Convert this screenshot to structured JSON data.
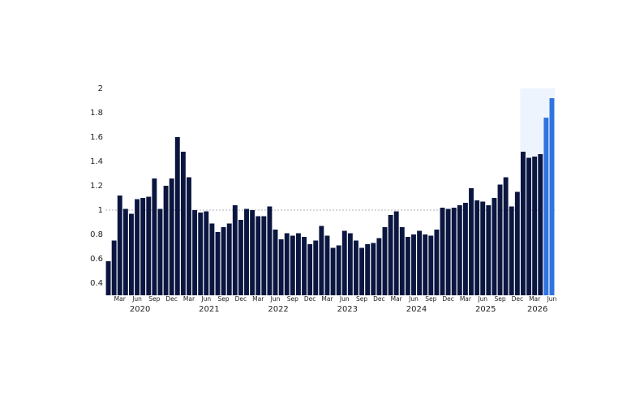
{
  "chart_data": {
    "type": "bar",
    "categories": [
      null,
      null,
      "Mar",
      null,
      null,
      "Jun",
      null,
      null,
      "Sep",
      null,
      null,
      "Dec",
      null,
      null,
      "Mar",
      null,
      null,
      "Jun",
      null,
      null,
      "Sep",
      null,
      null,
      "Dec",
      null,
      null,
      "Mar",
      null,
      null,
      "Jun",
      null,
      null,
      "Sep",
      null,
      null,
      "Dec",
      null,
      null,
      "Mar",
      null,
      null,
      "Jun",
      null,
      null,
      "Sep",
      null,
      null,
      "Dec",
      null,
      null,
      "Mar",
      null,
      null,
      "Jun",
      null,
      null,
      "Sep",
      null,
      null,
      "Dec",
      null,
      null,
      "Mar",
      null,
      null,
      "Jun",
      null,
      null,
      "Sep",
      null,
      null,
      "Dec",
      null,
      null,
      "Mar",
      null,
      null,
      "Jun"
    ],
    "years": [
      "2020",
      "2021",
      "2022",
      "2023",
      "2024",
      "2025",
      "2026"
    ],
    "values": [
      0.58,
      0.75,
      1.12,
      1.01,
      0.97,
      1.09,
      1.1,
      1.11,
      1.26,
      1.01,
      1.2,
      1.26,
      1.6,
      1.48,
      1.27,
      1.0,
      0.98,
      0.99,
      0.89,
      0.82,
      0.86,
      0.89,
      1.04,
      0.92,
      1.01,
      1.0,
      0.95,
      0.95,
      1.03,
      0.84,
      0.76,
      0.81,
      0.79,
      0.81,
      0.78,
      0.72,
      0.75,
      0.87,
      0.79,
      0.69,
      0.71,
      0.83,
      0.81,
      0.75,
      0.69,
      0.72,
      0.73,
      0.77,
      0.86,
      0.96,
      0.99,
      0.86,
      0.78,
      0.8,
      0.83,
      0.8,
      0.79,
      0.84,
      1.02,
      1.01,
      1.02,
      1.04,
      1.06,
      1.18,
      1.08,
      1.07,
      1.04,
      1.1,
      1.21,
      1.27,
      1.03,
      1.15,
      1.48,
      1.43,
      1.44,
      1.46,
      1.76,
      1.92
    ],
    "color": "#0b1640",
    "highlight_color": "#2f74e0",
    "highlight_last": 2,
    "shade_from": 72,
    "shade_color": "#eef4fd",
    "reference_line": 1.0,
    "ylim": [
      0.3,
      2.0
    ],
    "yticks": [
      0.4,
      0.6,
      0.8,
      1.0,
      1.2,
      1.4,
      1.6,
      1.8,
      2.0
    ]
  }
}
